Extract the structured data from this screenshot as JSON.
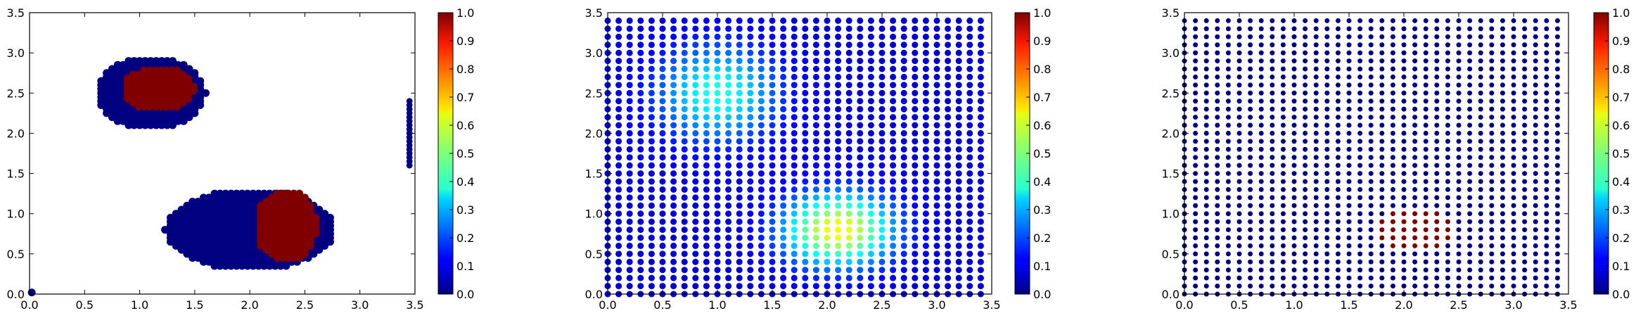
{
  "chart_data": [
    {
      "type": "scatter",
      "title": "",
      "xlabel": "",
      "ylabel": "",
      "xlim": [
        0.0,
        3.5
      ],
      "ylim": [
        0.0,
        3.5
      ],
      "xticks": [
        "0.0",
        "0.5",
        "1.0",
        "1.5",
        "2.0",
        "2.5",
        "3.0",
        "3.5"
      ],
      "yticks": [
        "0.0",
        "0.5",
        "1.0",
        "1.5",
        "2.0",
        "2.5",
        "3.0",
        "3.5"
      ],
      "colormap": "jet",
      "colorbar": {
        "range": [
          0.0,
          1.0
        ],
        "ticks": [
          "0.0",
          "0.1",
          "0.2",
          "0.3",
          "0.4",
          "0.5",
          "0.6",
          "0.7",
          "0.8",
          "0.9",
          "1.0"
        ]
      },
      "grid": false,
      "point_size": 11,
      "regions": [
        {
          "shape": "ellipse",
          "cx": 1.1,
          "cy": 2.5,
          "rx": 0.5,
          "ry": 0.45,
          "value": 0.0
        },
        {
          "shape": "ellipse",
          "cx": 1.17,
          "cy": 2.55,
          "rx": 0.33,
          "ry": 0.27,
          "value": 1.0
        },
        {
          "shape": "ellipse",
          "cx": 2.0,
          "cy": 0.8,
          "rx": 0.77,
          "ry": 0.5,
          "value": 0.0
        },
        {
          "shape": "ellipse",
          "cx": 2.33,
          "cy": 0.85,
          "rx": 0.28,
          "ry": 0.45,
          "value": 1.0
        },
        {
          "shape": "line",
          "x": 3.45,
          "y_from": 1.6,
          "y_to": 2.4,
          "value": 0.0
        },
        {
          "shape": "point",
          "x": 0.02,
          "y": 0.02,
          "value": 0.0
        }
      ]
    },
    {
      "type": "scatter",
      "title": "",
      "xlabel": "",
      "ylabel": "",
      "xlim": [
        0.0,
        3.5
      ],
      "ylim": [
        0.0,
        3.5
      ],
      "xticks": [
        "0.0",
        "0.5",
        "1.0",
        "1.5",
        "2.0",
        "2.5",
        "3.0",
        "3.5"
      ],
      "yticks": [
        "0.0",
        "0.5",
        "1.0",
        "1.5",
        "2.0",
        "2.5",
        "3.0",
        "3.5"
      ],
      "colormap": "jet",
      "colorbar": {
        "range": [
          0.0,
          1.0
        ],
        "ticks": [
          "0.0",
          "0.1",
          "0.2",
          "0.3",
          "0.4",
          "0.5",
          "0.6",
          "0.7",
          "0.8",
          "0.9",
          "1.0"
        ]
      },
      "grid": false,
      "point_size": 9,
      "grid_points": {
        "x_start": 0.0,
        "x_end": 3.4,
        "y_start": 0.0,
        "y_end": 3.4,
        "step": 0.1
      },
      "field": [
        {
          "cx": 1.0,
          "cy": 2.5,
          "sx": 0.55,
          "sy": 0.6,
          "amplitude": 0.32
        },
        {
          "cx": 2.1,
          "cy": 0.8,
          "sx": 0.5,
          "sy": 0.45,
          "amplitude": 0.55
        }
      ],
      "baseline": 0.08
    },
    {
      "type": "scatter",
      "title": "",
      "xlabel": "",
      "ylabel": "",
      "xlim": [
        0.0,
        3.5
      ],
      "ylim": [
        0.0,
        3.5
      ],
      "xticks": [
        "0.0",
        "0.5",
        "1.0",
        "1.5",
        "2.0",
        "2.5",
        "3.0",
        "3.5"
      ],
      "yticks": [
        "0.0",
        "0.5",
        "1.0",
        "1.5",
        "2.0",
        "2.5",
        "3.0",
        "3.5"
      ],
      "colormap": "jet",
      "colorbar": {
        "range": [
          0.0,
          1.0
        ],
        "ticks": [
          "0.0",
          "0.1",
          "0.2",
          "0.3",
          "0.4",
          "0.5",
          "0.6",
          "0.7",
          "0.8",
          "0.9",
          "1.0"
        ]
      },
      "grid": false,
      "point_size": 7,
      "grid_points": {
        "x_start": 0.0,
        "x_end": 3.4,
        "y_start": 0.0,
        "y_end": 3.4,
        "step": 0.1
      },
      "highlight": {
        "x_from": 1.8,
        "x_to": 2.4,
        "y_from": 0.6,
        "y_to": 1.0,
        "value": 1.0
      },
      "baseline": 0.0
    }
  ]
}
